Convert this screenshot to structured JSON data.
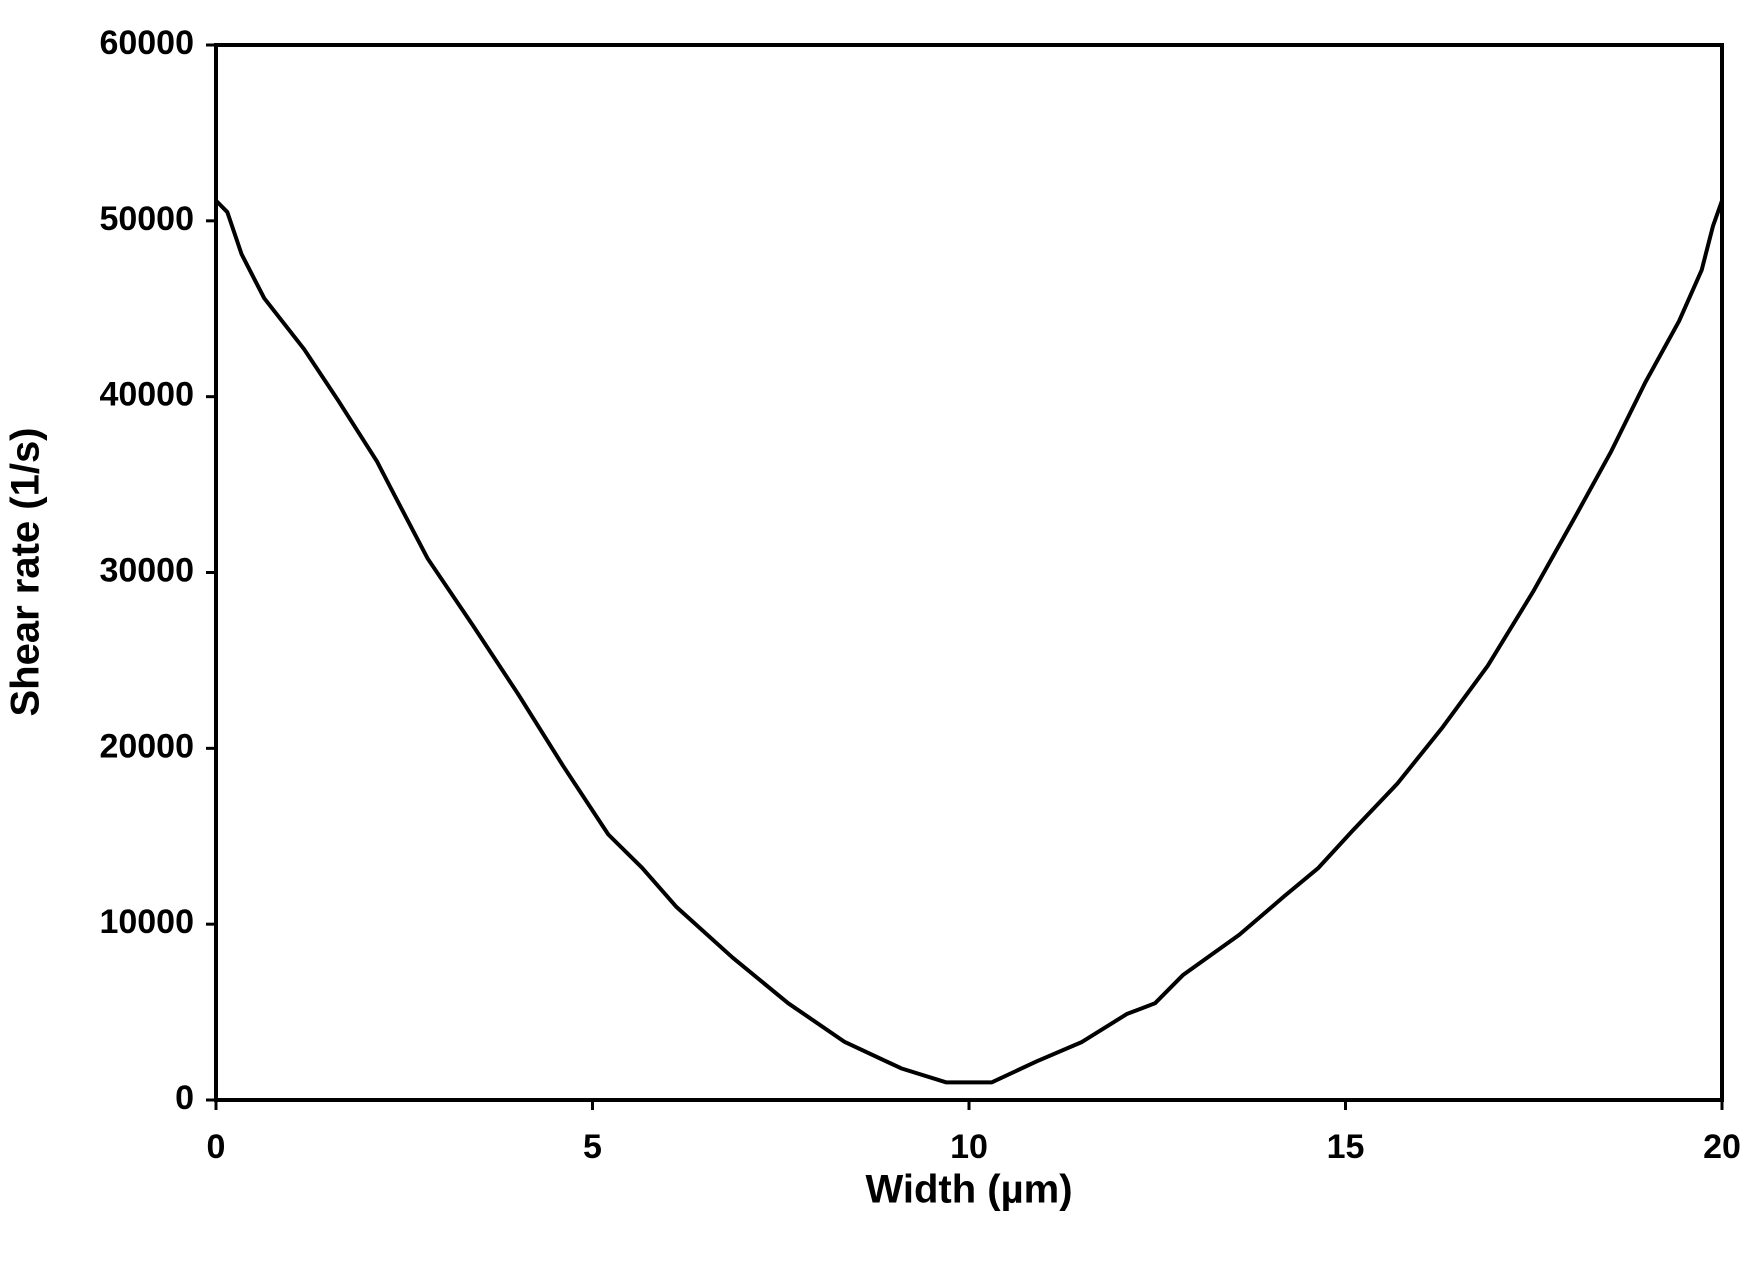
{
  "chart_data": {
    "type": "line",
    "x_label": "Width (µm)",
    "y_label": "Shear rate (1/s)",
    "xlim": [
      0,
      20
    ],
    "xticks": [
      0,
      5,
      10,
      15,
      20
    ],
    "ylim": [
      0,
      60000
    ],
    "yticks": [
      0,
      10000,
      20000,
      30000,
      40000,
      50000,
      60000
    ],
    "grid": false,
    "series": [
      {
        "color": "#000000",
        "x": [
          0,
          0.15,
          0.34,
          0.64,
          1.17,
          1.62,
          2.14,
          2.37,
          2.81,
          3.41,
          4.01,
          4.61,
          5.21,
          5.66,
          6.11,
          6.86,
          7.6,
          8.35,
          9.1,
          9.7,
          10.3,
          10.9,
          11.5,
          12.1,
          12.47,
          12.84,
          13.59,
          14.19,
          14.64,
          15.09,
          15.69,
          16.29,
          16.89,
          17.49,
          18.08,
          18.53,
          18.98,
          19.43,
          19.73,
          19.88,
          20
        ],
        "values": [
          51150,
          50500,
          48100,
          45600,
          42700,
          39800,
          36300,
          34400,
          30800,
          27000,
          23100,
          19000,
          15100,
          13200,
          11000,
          8100,
          5500,
          3300,
          1800,
          1000,
          1000,
          2200,
          3300,
          4900,
          5500,
          7100,
          9400,
          11600,
          13200,
          15300,
          18000,
          21200,
          24700,
          28900,
          33400,
          36900,
          40800,
          44300,
          47200,
          49700,
          51150
        ]
      }
    ]
  }
}
